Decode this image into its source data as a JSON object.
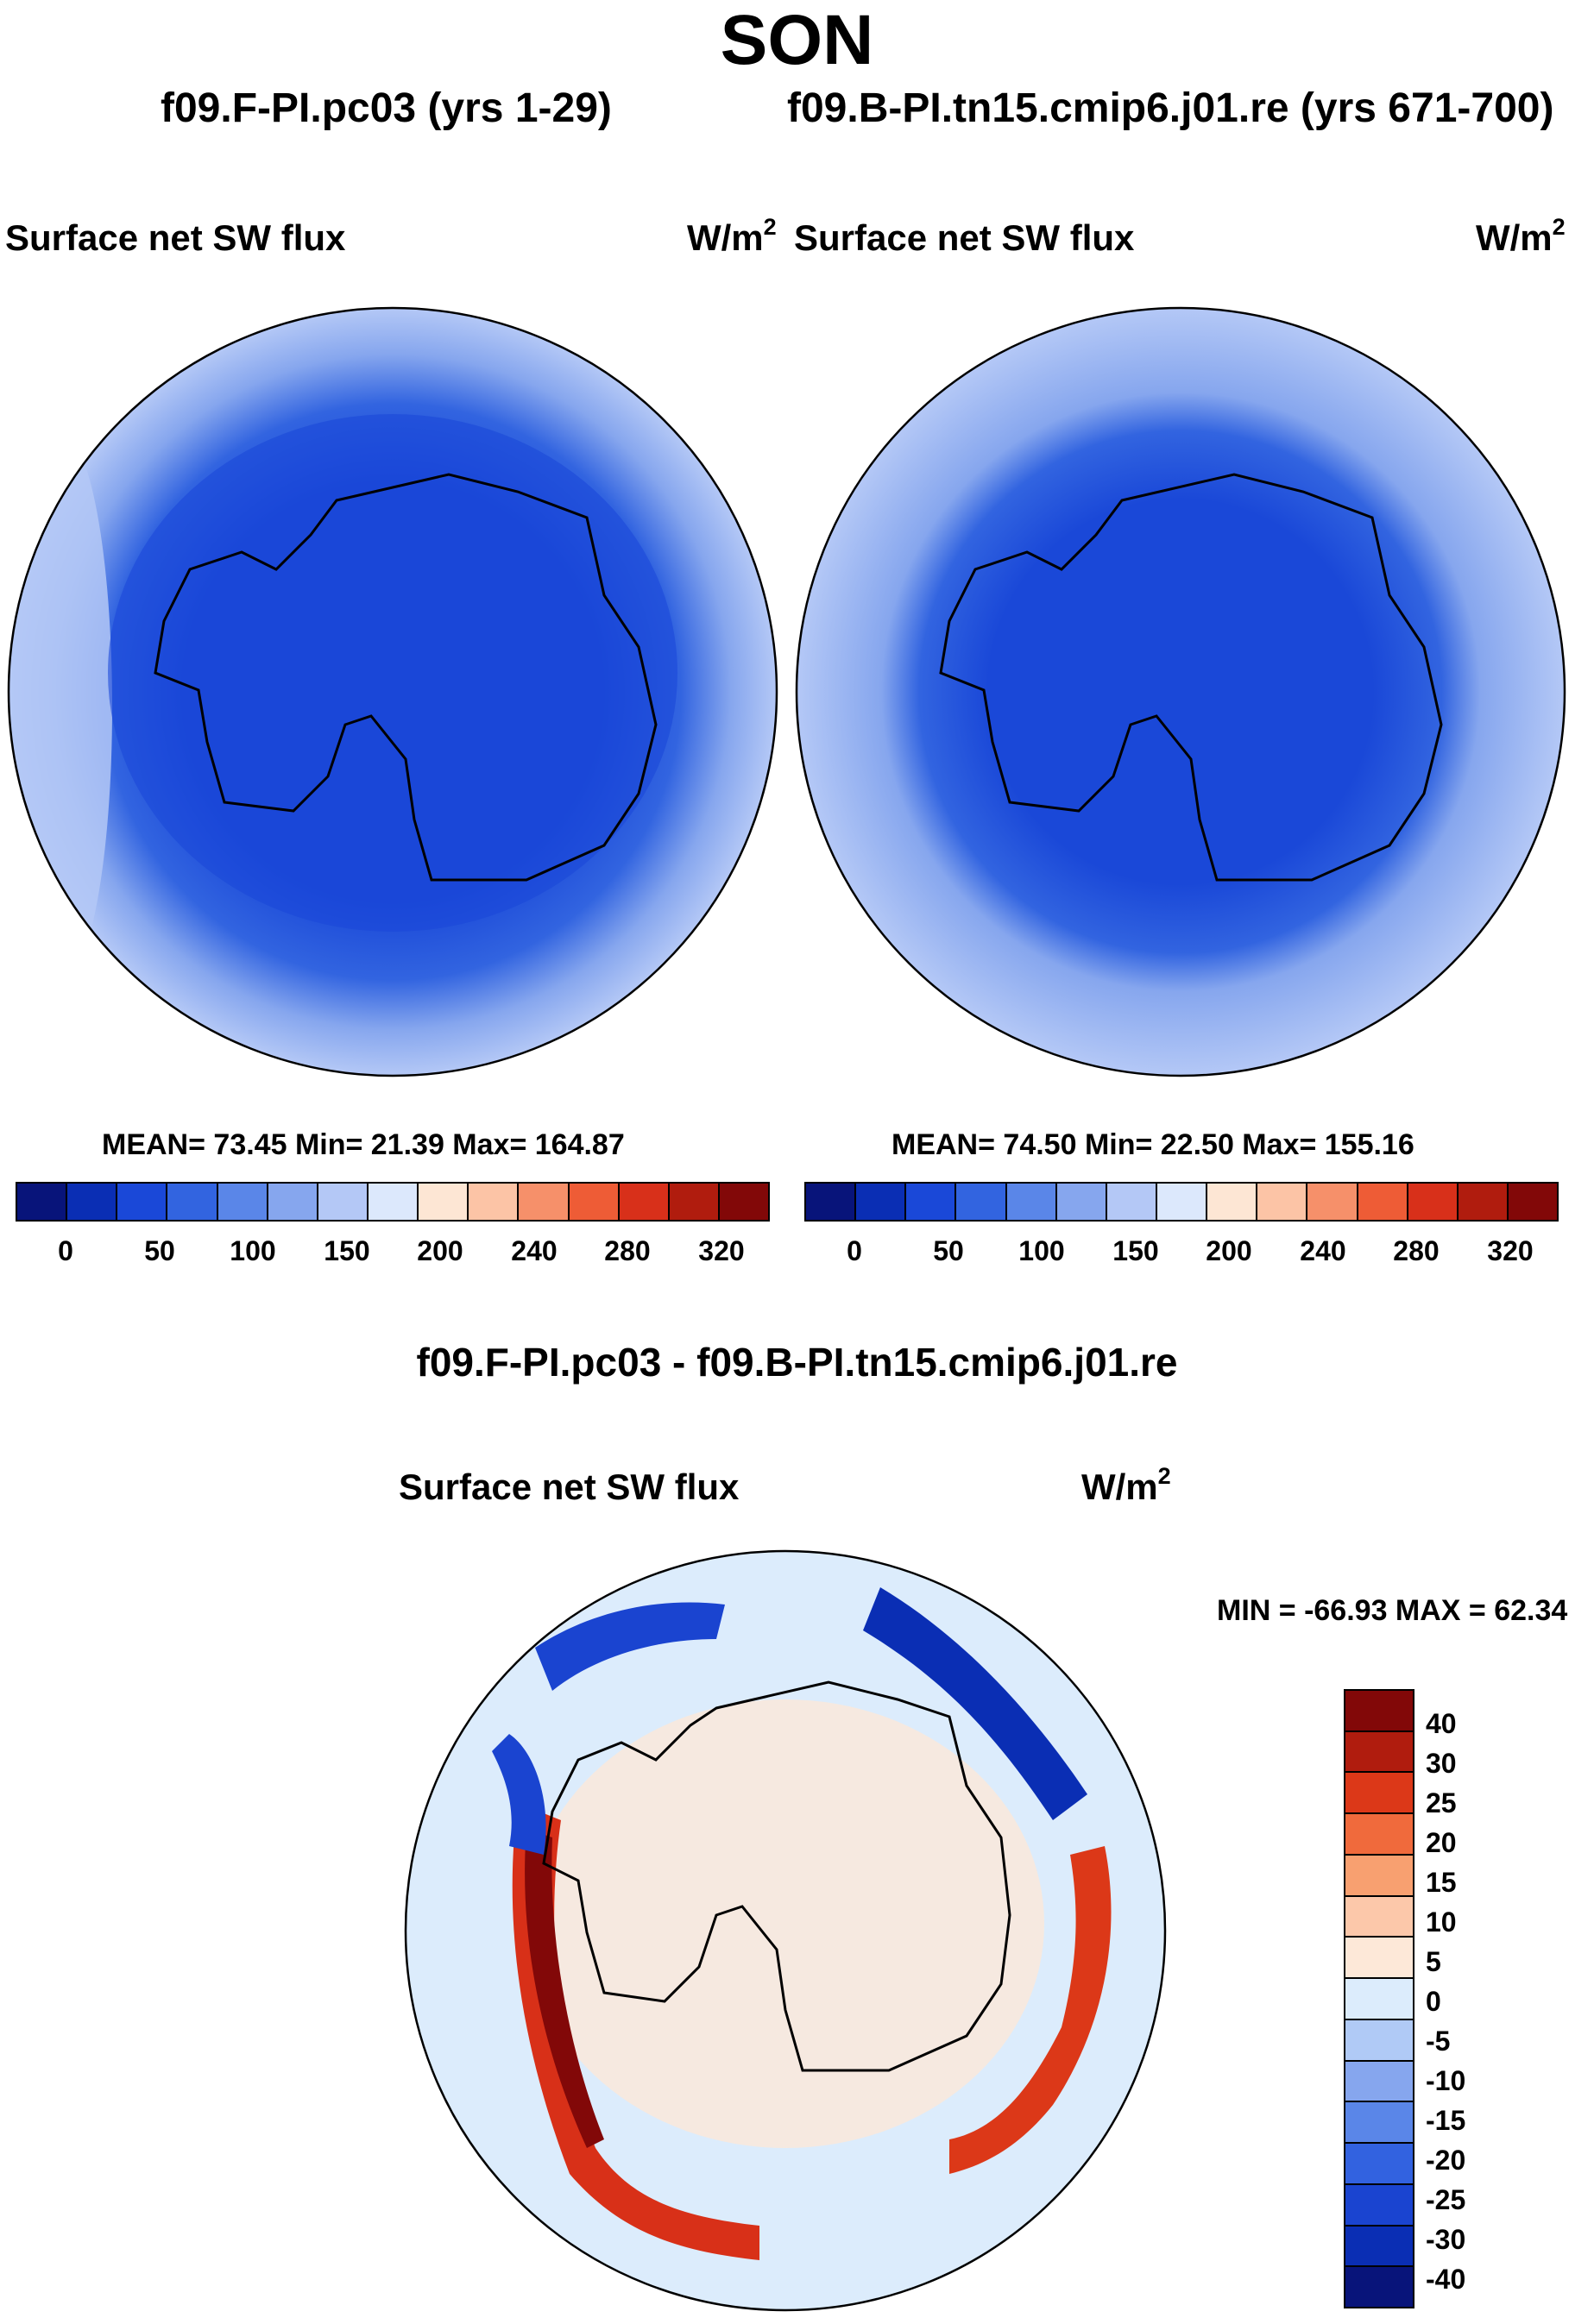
{
  "title": "SON",
  "colors": {
    "abs_scale": [
      "#08147a",
      "#0a2eb4",
      "#1a48d8",
      "#3264e0",
      "#5a86e8",
      "#86a6ee",
      "#b4c8f6",
      "#dce8fc",
      "#fde6d4",
      "#fcc4a6",
      "#f6906a",
      "#ee5c36",
      "#d8301a",
      "#b01c0e",
      "#820808"
    ],
    "diff_scale": [
      "#820808",
      "#b01c0e",
      "#dc3818",
      "#f06a3c",
      "#f8a070",
      "#fcc8aa",
      "#fde8d8",
      "#dcecfc",
      "#b0caf6",
      "#86a6ee",
      "#5a86e8",
      "#3262e0",
      "#1a44d0",
      "#0a2eb4",
      "#08147a"
    ]
  },
  "left_panel": {
    "case": "f09.F-PI.pc03 (yrs 1-29)",
    "label": "Surface net SW flux",
    "unit": "W/m",
    "unit_exp": "2",
    "stats": "MEAN=  73.45  Min=  21.39  Max= 164.87",
    "ticks": [
      "0",
      "50",
      "100",
      "150",
      "200",
      "240",
      "280",
      "320"
    ]
  },
  "right_panel": {
    "case": "f09.B-PI.tn15.cmip6.j01.re (yrs 671-700)",
    "label": "Surface net SW flux",
    "unit": "W/m",
    "unit_exp": "2",
    "stats": "MEAN=  74.50  Min=  22.50  Max= 155.16",
    "ticks": [
      "0",
      "50",
      "100",
      "150",
      "200",
      "240",
      "280",
      "320"
    ]
  },
  "diff_panel": {
    "title": "f09.F-PI.pc03 - f09.B-PI.tn15.cmip6.j01.re",
    "label": "Surface net SW flux",
    "unit": "W/m",
    "unit_exp": "2",
    "stats": "MIN = -66.93 MAX =  62.34",
    "ticks": [
      "40",
      "30",
      "25",
      "20",
      "15",
      "10",
      "5",
      "0",
      "-5",
      "-10",
      "-15",
      "-20",
      "-25",
      "-30",
      "-40"
    ]
  },
  "chart_data": [
    {
      "type": "heatmap",
      "projection": "south-polar-stereographic",
      "title": "Surface net SW flux",
      "subtitle": "f09.F-PI.pc03 (yrs 1-29)",
      "units": "W/m2",
      "levels": [
        0,
        50,
        100,
        150,
        200,
        240,
        280,
        320
      ],
      "mean": 73.45,
      "min": 21.39,
      "max": 164.87
    },
    {
      "type": "heatmap",
      "projection": "south-polar-stereographic",
      "title": "Surface net SW flux",
      "subtitle": "f09.B-PI.tn15.cmip6.j01.re (yrs 671-700)",
      "units": "W/m2",
      "levels": [
        0,
        50,
        100,
        150,
        200,
        240,
        280,
        320
      ],
      "mean": 74.5,
      "min": 22.5,
      "max": 155.16
    },
    {
      "type": "heatmap",
      "projection": "south-polar-stereographic",
      "title": "f09.F-PI.pc03 - f09.B-PI.tn15.cmip6.j01.re",
      "units": "W/m2",
      "levels": [
        -40,
        -30,
        -25,
        -20,
        -15,
        -10,
        -5,
        0,
        5,
        10,
        15,
        20,
        25,
        30,
        40
      ],
      "min": -66.93,
      "max": 62.34
    }
  ]
}
